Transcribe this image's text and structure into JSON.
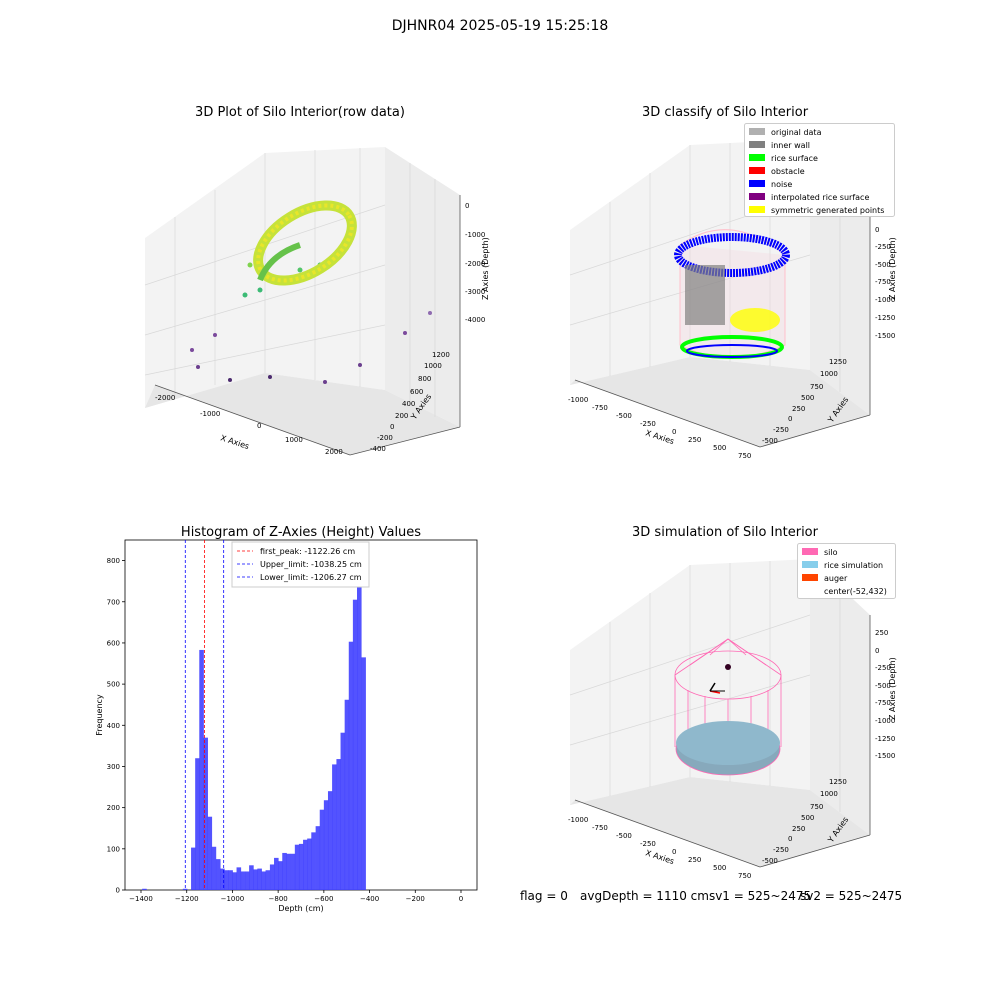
{
  "figure": {
    "title": "DJHNR04 2025-05-19 15:25:18"
  },
  "footer": {
    "flag": "flag = 0",
    "avg_depth": "avgDepth = 1110 cmsv1 = 525~2475",
    "sv2": "sv2 = 525~2475"
  },
  "panel_raw": {
    "title": "3D Plot of Silo Interior(row data)",
    "x_label": "X Axies",
    "y_label": "Y Axies",
    "z_label": "Z Axies (Depth)",
    "x_ticks": [
      "-2000",
      "-1000",
      "0",
      "1000",
      "2000"
    ],
    "y_ticks": [
      "-400",
      "-200",
      "0",
      "200",
      "400",
      "600",
      "800",
      "1000",
      "1200"
    ],
    "z_ticks": [
      "0",
      "-1000",
      "-2000",
      "-3000",
      "-4000"
    ]
  },
  "panel_classify": {
    "title": "3D classify of Silo Interior",
    "x_label": "X Axies",
    "y_label": "Y Axies",
    "z_label": "Z Axies (Depth)",
    "x_ticks": [
      "-1000",
      "-750",
      "-500",
      "-250",
      "0",
      "250",
      "500",
      "750"
    ],
    "y_ticks": [
      "-500",
      "-250",
      "0",
      "250",
      "500",
      "750",
      "1000",
      "1250"
    ],
    "z_ticks": [
      "0",
      "-250",
      "-500",
      "-750",
      "-1000",
      "-1250",
      "-1500"
    ],
    "legend": [
      {
        "label": "original data",
        "color": "#b0b0b0"
      },
      {
        "label": "inner wall",
        "color": "#808080"
      },
      {
        "label": "rice surface",
        "color": "#00ff00"
      },
      {
        "label": "obstacle",
        "color": "#ff0000"
      },
      {
        "label": "noise",
        "color": "#0000ff"
      },
      {
        "label": "interpolated rice surface",
        "color": "#800080"
      },
      {
        "label": "symmetric generated points",
        "color": "#ffff00"
      }
    ]
  },
  "panel_sim": {
    "title": "3D simulation of Silo Interior",
    "x_label": "X Axies",
    "y_label": "Y Axies",
    "z_label": "Z Axies (Depth)",
    "x_ticks": [
      "-1000",
      "-750",
      "-500",
      "-250",
      "0",
      "250",
      "500",
      "750"
    ],
    "y_ticks": [
      "-500",
      "-250",
      "0",
      "250",
      "500",
      "750",
      "1000",
      "1250"
    ],
    "z_ticks": [
      "250",
      "0",
      "-250",
      "-500",
      "-750",
      "-1000",
      "-1250",
      "-1500"
    ],
    "legend": [
      {
        "label": "silo",
        "color": "#ff69b4"
      },
      {
        "label": "rice simulation",
        "color": "#87ceeb"
      },
      {
        "label": "auger",
        "color": "#ff4500"
      },
      {
        "label": "center(-52,432)",
        "color": ""
      }
    ]
  },
  "chart_data": {
    "type": "bar",
    "title": "Histogram of Z-Axies (Height) Values",
    "xlabel": "Depth (cm)",
    "ylabel": "Frequency",
    "xlim": [
      -1470,
      70
    ],
    "ylim": [
      0,
      850
    ],
    "x_ticks": [
      -1400,
      -1200,
      -1000,
      -800,
      -600,
      -400,
      -200,
      0
    ],
    "y_ticks": [
      0,
      100,
      200,
      300,
      400,
      500,
      600,
      700,
      800
    ],
    "bin_width": 20,
    "bins": [
      {
        "x": -1395,
        "y": 3
      },
      {
        "x": -1217,
        "y": 3
      },
      {
        "x": -1181,
        "y": 103
      },
      {
        "x": -1163,
        "y": 320
      },
      {
        "x": -1145,
        "y": 583
      },
      {
        "x": -1127,
        "y": 370
      },
      {
        "x": -1109,
        "y": 178
      },
      {
        "x": -1091,
        "y": 105
      },
      {
        "x": -1072,
        "y": 75
      },
      {
        "x": -1054,
        "y": 52
      },
      {
        "x": -1036,
        "y": 48
      },
      {
        "x": -1018,
        "y": 48
      },
      {
        "x": -1000,
        "y": 43
      },
      {
        "x": -982,
        "y": 55
      },
      {
        "x": -964,
        "y": 45
      },
      {
        "x": -945,
        "y": 45
      },
      {
        "x": -927,
        "y": 60
      },
      {
        "x": -909,
        "y": 50
      },
      {
        "x": -891,
        "y": 52
      },
      {
        "x": -873,
        "y": 45
      },
      {
        "x": -855,
        "y": 48
      },
      {
        "x": -836,
        "y": 62
      },
      {
        "x": -818,
        "y": 78
      },
      {
        "x": -800,
        "y": 70
      },
      {
        "x": -782,
        "y": 90
      },
      {
        "x": -764,
        "y": 88
      },
      {
        "x": -745,
        "y": 88
      },
      {
        "x": -727,
        "y": 110
      },
      {
        "x": -709,
        "y": 112
      },
      {
        "x": -691,
        "y": 122
      },
      {
        "x": -673,
        "y": 125
      },
      {
        "x": -655,
        "y": 140
      },
      {
        "x": -636,
        "y": 155
      },
      {
        "x": -618,
        "y": 195
      },
      {
        "x": -600,
        "y": 218
      },
      {
        "x": -582,
        "y": 240
      },
      {
        "x": -564,
        "y": 305
      },
      {
        "x": -545,
        "y": 318
      },
      {
        "x": -527,
        "y": 382
      },
      {
        "x": -509,
        "y": 462
      },
      {
        "x": -491,
        "y": 603
      },
      {
        "x": -473,
        "y": 705
      },
      {
        "x": -455,
        "y": 812
      },
      {
        "x": -436,
        "y": 565
      }
    ],
    "lines": [
      {
        "label": "first_peak: -1122.26 cm",
        "value": -1122.26,
        "color": "#ff0000"
      },
      {
        "label": "Upper_limit: -1038.25 cm",
        "value": -1038.25,
        "color": "#0000ff"
      },
      {
        "label": "Lower_limit: -1206.27 cm",
        "value": -1206.27,
        "color": "#0000ff"
      }
    ],
    "bar_color": "#4040ff"
  }
}
